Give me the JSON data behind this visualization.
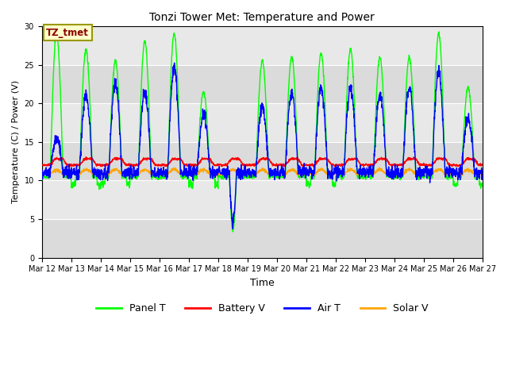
{
  "title": "Tonzi Tower Met: Temperature and Power",
  "xlabel": "Time",
  "ylabel": "Temperature (C) / Power (V)",
  "ylim": [
    0,
    30
  ],
  "yticks": [
    0,
    5,
    10,
    15,
    20,
    25,
    30
  ],
  "xtick_labels": [
    "Mar 12",
    "Mar 13",
    "Mar 14",
    "Mar 15",
    "Mar 16",
    "Mar 17",
    "Mar 18",
    "Mar 19",
    "Mar 20",
    "Mar 21",
    "Mar 22",
    "Mar 23",
    "Mar 24",
    "Mar 25",
    "Mar 26",
    "Mar 27"
  ],
  "annotation_text": "TZ_tmet",
  "annotation_color": "#8B0000",
  "annotation_bg": "#FFFFCC",
  "annotation_border": "#999900",
  "bg_color": "#E8E8E8",
  "colors": {
    "Panel T": "#00FF00",
    "Battery V": "#FF0000",
    "Air T": "#0000FF",
    "Solar V": "#FFA500"
  },
  "linewidth": 1.0,
  "panel_peaks": [
    29,
    27,
    25.5,
    28,
    29,
    21.5,
    3.5,
    25.5,
    26,
    26.5,
    27,
    26,
    26,
    29,
    22
  ],
  "air_peaks": [
    15.5,
    21,
    22.5,
    21.5,
    24.5,
    18.5,
    4.5,
    19.5,
    21.5,
    22,
    22,
    21,
    22,
    24,
    18
  ],
  "panel_base": 10.5,
  "air_base": 11.0,
  "battery_base": 12.0,
  "solar_base": 11.0
}
